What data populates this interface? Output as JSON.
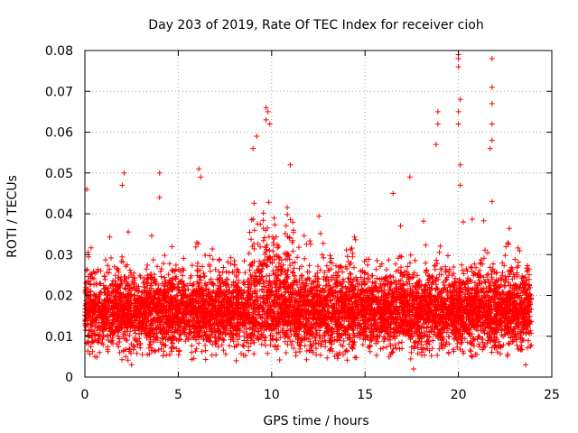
{
  "chart_data": {
    "type": "scatter",
    "title": "Day 203 of 2019, Rate Of TEC Index for receiver cioh",
    "xlabel": "GPS time / hours",
    "ylabel": "ROTI / TECUs",
    "xlim": [
      0,
      25
    ],
    "ylim": [
      0,
      0.08
    ],
    "xticks": [
      0,
      5,
      10,
      15,
      20,
      25
    ],
    "xtick_labels": [
      "0",
      "5",
      "10",
      "15",
      "20",
      "25"
    ],
    "yticks": [
      0,
      0.01,
      0.02,
      0.03,
      0.04,
      0.05,
      0.06,
      0.07,
      0.08
    ],
    "ytick_labels": [
      "0",
      "0.01",
      "0.02",
      "0.03",
      "0.04",
      "0.05",
      "0.06",
      "0.07",
      "0.08"
    ],
    "grid": true,
    "marker": "+",
    "color": "#ff0000",
    "series": [
      {
        "name": "ROTI",
        "dense_band": {
          "x_range": [
            0,
            23.9
          ],
          "typical_min": 0.008,
          "typical_max": 0.025,
          "mean": 0.016
        },
        "notable_points": [
          {
            "x": 0.1,
            "y": 0.046
          },
          {
            "x": 2.1,
            "y": 0.05
          },
          {
            "x": 2.0,
            "y": 0.047
          },
          {
            "x": 4.0,
            "y": 0.05
          },
          {
            "x": 4.0,
            "y": 0.044
          },
          {
            "x": 6.1,
            "y": 0.051
          },
          {
            "x": 6.2,
            "y": 0.049
          },
          {
            "x": 9.2,
            "y": 0.059
          },
          {
            "x": 9.0,
            "y": 0.056
          },
          {
            "x": 9.7,
            "y": 0.066
          },
          {
            "x": 9.8,
            "y": 0.065
          },
          {
            "x": 9.7,
            "y": 0.063
          },
          {
            "x": 9.9,
            "y": 0.062
          },
          {
            "x": 11.0,
            "y": 0.052
          },
          {
            "x": 16.5,
            "y": 0.045
          },
          {
            "x": 17.4,
            "y": 0.049
          },
          {
            "x": 18.9,
            "y": 0.065
          },
          {
            "x": 18.9,
            "y": 0.062
          },
          {
            "x": 18.8,
            "y": 0.057
          },
          {
            "x": 20.0,
            "y": 0.079
          },
          {
            "x": 20.0,
            "y": 0.078
          },
          {
            "x": 20.0,
            "y": 0.076
          },
          {
            "x": 20.1,
            "y": 0.068
          },
          {
            "x": 20.0,
            "y": 0.065
          },
          {
            "x": 20.0,
            "y": 0.062
          },
          {
            "x": 20.1,
            "y": 0.052
          },
          {
            "x": 20.1,
            "y": 0.047
          },
          {
            "x": 21.8,
            "y": 0.078
          },
          {
            "x": 21.8,
            "y": 0.071
          },
          {
            "x": 21.8,
            "y": 0.067
          },
          {
            "x": 21.8,
            "y": 0.062
          },
          {
            "x": 21.8,
            "y": 0.058
          },
          {
            "x": 21.7,
            "y": 0.056
          },
          {
            "x": 21.8,
            "y": 0.043
          },
          {
            "x": 17.6,
            "y": 0.002
          },
          {
            "x": 8.1,
            "y": 0.004
          },
          {
            "x": 2.5,
            "y": 0.003
          },
          {
            "x": 23.6,
            "y": 0.003
          }
        ]
      }
    ]
  }
}
